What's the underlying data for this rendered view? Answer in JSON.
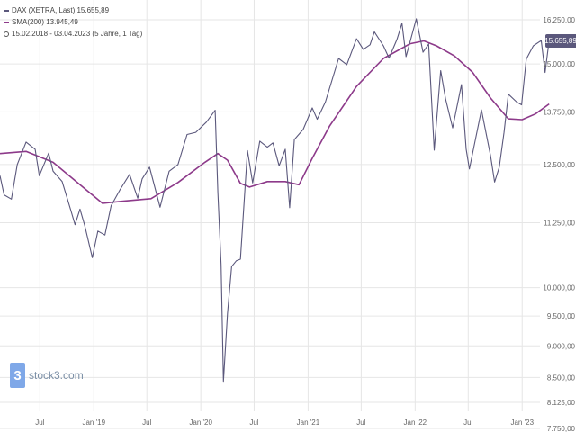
{
  "legend": {
    "series1": "DAX (XETRA, Last)  15.655,89",
    "series2": "SMA(200)  13.945,49",
    "period": "15.02.2018 - 03.04.2023  (5 Jahre, 1 Tag)"
  },
  "logo": {
    "text": "stock3.com",
    "mark": "3"
  },
  "colors": {
    "price": "#5b587c",
    "sma": "#8d3a8a",
    "grid": "#e6e6e6",
    "badge": "#5b587c"
  },
  "chart_data": {
    "type": "line",
    "y_scale": "log",
    "ylim": [
      7750,
      16500
    ],
    "x_ticks": [
      "Jul",
      "Jan '19",
      "Jul",
      "Jan '20",
      "Jul",
      "Jan '21",
      "Jul",
      "Jan '22",
      "Jul",
      "Jan '23"
    ],
    "y_ticks": [
      "16.250,00",
      "15.000,00",
      "13.750,00",
      "12.500,00",
      "11.250,00",
      "10.000,00",
      "9.500,00",
      "9.000,00",
      "8.500,00",
      "8.125,00",
      "7.750,00"
    ],
    "last_value_label": "15.655,89",
    "series": [
      {
        "name": "DAX (XETRA, Last)",
        "x": [
          "2018-02-15",
          "2018-03-01",
          "2018-03-26",
          "2018-04-15",
          "2018-05-15",
          "2018-06-15",
          "2018-06-29",
          "2018-07-31",
          "2018-08-15",
          "2018-09-15",
          "2018-10-15",
          "2018-10-29",
          "2018-11-15",
          "2018-12-01",
          "2018-12-27",
          "2019-01-15",
          "2019-02-08",
          "2019-03-01",
          "2019-04-01",
          "2019-05-03",
          "2019-05-31",
          "2019-06-15",
          "2019-07-10",
          "2019-08-15",
          "2019-09-15",
          "2019-10-15",
          "2019-11-15",
          "2019-12-15",
          "2020-01-20",
          "2020-02-19",
          "2020-02-28",
          "2020-03-10",
          "2020-03-18",
          "2020-04-01",
          "2020-04-15",
          "2020-05-01",
          "2020-05-15",
          "2020-06-08",
          "2020-06-26",
          "2020-07-20",
          "2020-08-15",
          "2020-09-03",
          "2020-09-24",
          "2020-10-15",
          "2020-10-30",
          "2020-11-15",
          "2020-12-15",
          "2021-01-15",
          "2021-02-01",
          "2021-03-01",
          "2021-04-15",
          "2021-05-13",
          "2021-06-15",
          "2021-07-08",
          "2021-07-31",
          "2021-08-15",
          "2021-09-15",
          "2021-10-04",
          "2021-10-31",
          "2021-11-17",
          "2021-12-01",
          "2022-01-05",
          "2022-01-28",
          "2022-02-16",
          "2022-03-07",
          "2022-03-29",
          "2022-04-15",
          "2022-05-09",
          "2022-06-08",
          "2022-06-24",
          "2022-07-05",
          "2022-08-15",
          "2022-09-15",
          "2022-09-29",
          "2022-10-15",
          "2022-10-31",
          "2022-11-15",
          "2022-12-13",
          "2022-12-30",
          "2023-01-15",
          "2023-02-08",
          "2023-03-07",
          "2023-03-20",
          "2023-04-03"
        ],
        "y": [
          12250,
          11830,
          11740,
          12500,
          13020,
          12850,
          12250,
          12760,
          12350,
          12120,
          11500,
          11210,
          11530,
          11190,
          10560,
          11080,
          11000,
          11600,
          11950,
          12280,
          11760,
          12180,
          12440,
          11570,
          12350,
          12500,
          13200,
          13250,
          13500,
          13790,
          11890,
          10430,
          8440,
          9540,
          10390,
          10500,
          10530,
          12820,
          12090,
          13040,
          12900,
          13000,
          12470,
          12850,
          11560,
          13080,
          13320,
          13850,
          13570,
          14000,
          15150,
          14980,
          15700,
          15400,
          15530,
          15900,
          15500,
          15160,
          15680,
          16150,
          15200,
          16280,
          15320,
          15550,
          12830,
          14820,
          14070,
          13360,
          14450,
          12850,
          12400,
          13800,
          12700,
          12110,
          12440,
          13250,
          14200,
          14000,
          13930,
          15130,
          15500,
          15650,
          14770,
          15655
        ]
      },
      {
        "name": "SMA(200)",
        "x": [
          "2018-02-15",
          "2018-05-15",
          "2018-08-15",
          "2018-11-15",
          "2019-01-31",
          "2019-04-15",
          "2019-07-15",
          "2019-10-15",
          "2020-01-15",
          "2020-02-28",
          "2020-04-01",
          "2020-05-15",
          "2020-06-15",
          "2020-08-15",
          "2020-10-15",
          "2020-12-01",
          "2021-01-15",
          "2021-03-15",
          "2021-06-15",
          "2021-09-15",
          "2021-12-15",
          "2022-01-31",
          "2022-03-15",
          "2022-05-15",
          "2022-07-15",
          "2022-09-15",
          "2022-11-15",
          "2023-01-01",
          "2023-02-15",
          "2023-04-03"
        ],
        "y": [
          12750,
          12800,
          12550,
          12050,
          11650,
          11700,
          11750,
          12100,
          12550,
          12750,
          12600,
          12080,
          12000,
          12120,
          12120,
          12050,
          12640,
          13400,
          14400,
          15150,
          15560,
          15640,
          15500,
          15220,
          14780,
          14100,
          13580,
          13560,
          13700,
          13950
        ]
      }
    ]
  }
}
